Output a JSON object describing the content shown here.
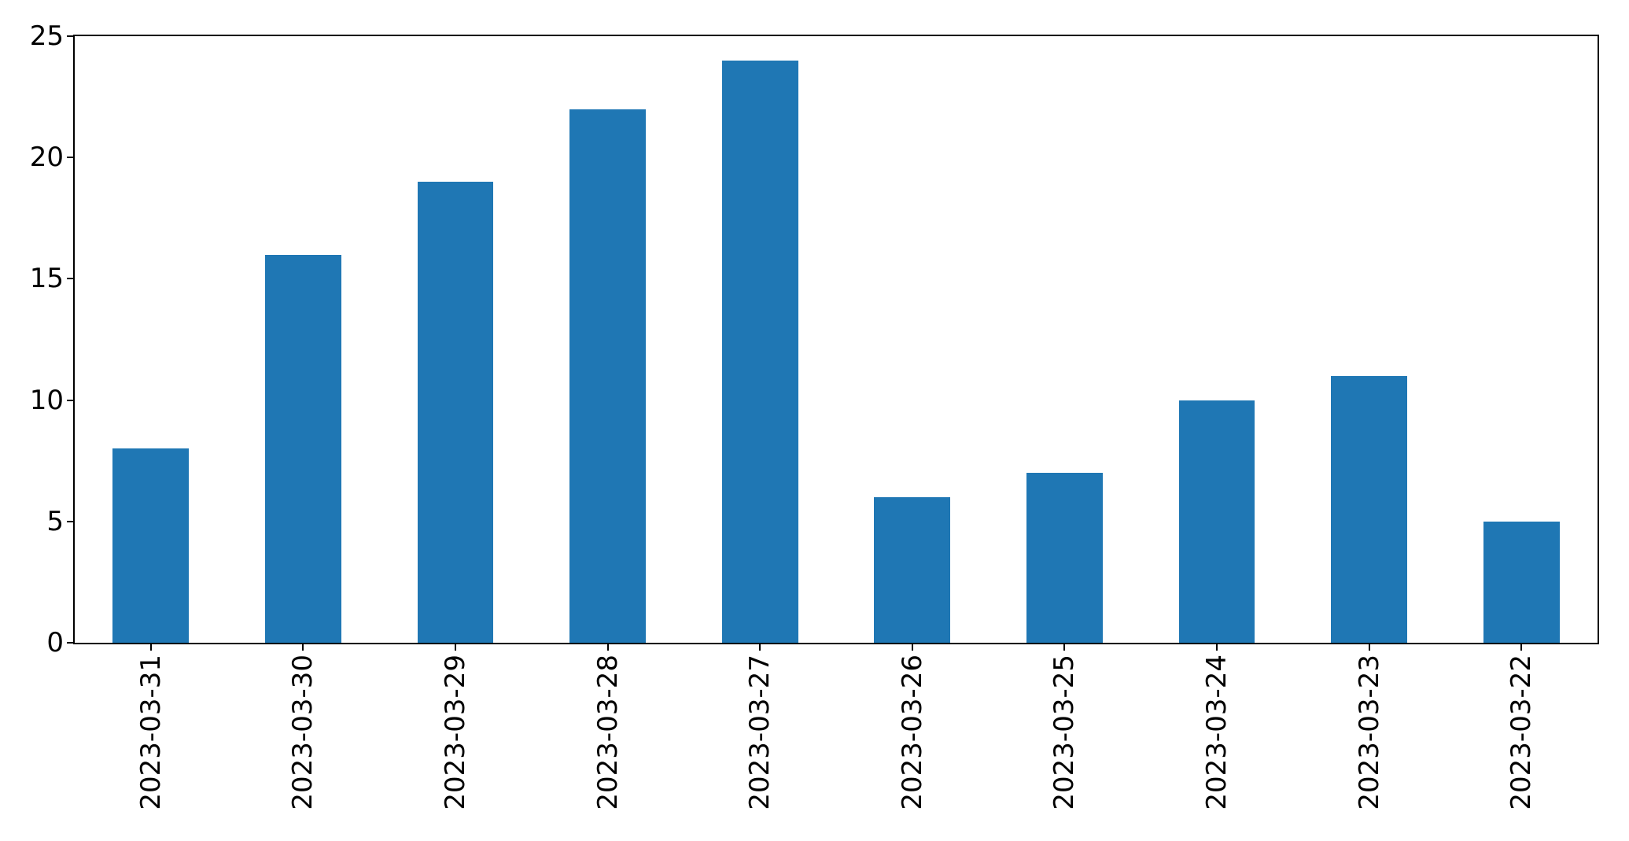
{
  "figure": {
    "background": "#ffffff",
    "axes_edge_color": "#000000",
    "tick_color": "#000000"
  },
  "chart_data": {
    "type": "bar",
    "title": "",
    "xlabel": "",
    "ylabel": "",
    "categories": [
      "2023-03-31",
      "2023-03-30",
      "2023-03-29",
      "2023-03-28",
      "2023-03-27",
      "2023-03-26",
      "2023-03-25",
      "2023-03-24",
      "2023-03-23",
      "2023-03-22"
    ],
    "values": [
      8,
      16,
      19,
      22,
      24,
      6,
      7,
      10,
      11,
      5
    ],
    "ylim": [
      0,
      25
    ],
    "yticks": [
      0,
      5,
      10,
      15,
      20,
      25
    ],
    "bar_color": "#1f77b4",
    "bar_width_fraction": 0.5,
    "x_tick_rotation_deg": 90,
    "grid": false,
    "legend": null
  }
}
